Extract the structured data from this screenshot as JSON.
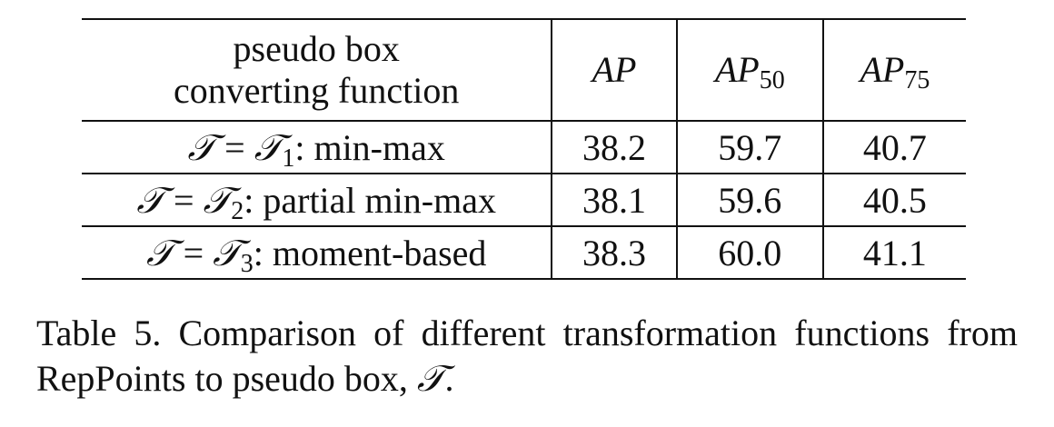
{
  "table": {
    "header": {
      "col1_line1": "pseudo box",
      "col1_line2": "converting function",
      "metrics": [
        {
          "base": "AP",
          "sub": ""
        },
        {
          "base": "AP",
          "sub": "50"
        },
        {
          "base": "AP",
          "sub": "75"
        }
      ]
    },
    "rows": [
      {
        "lhs": "𝒯",
        "eq": "=",
        "rhs_base": "𝒯",
        "rhs_sub": "1",
        "label": ": min-max",
        "ap": "38.2",
        "ap50": "59.7",
        "ap75": "40.7"
      },
      {
        "lhs": "𝒯",
        "eq": "=",
        "rhs_base": "𝒯",
        "rhs_sub": "2",
        "label": ": partial min-max",
        "ap": "38.1",
        "ap50": "59.6",
        "ap75": "40.5"
      },
      {
        "lhs": "𝒯",
        "eq": "=",
        "rhs_base": "𝒯",
        "rhs_sub": "3",
        "label": ": moment-based",
        "ap": "38.3",
        "ap50": "60.0",
        "ap75": "41.1"
      }
    ]
  },
  "caption": {
    "text": "Table 5. Comparison of different transformation functions from RepPoints to pseudo box, ",
    "symbol": "𝒯",
    "end": "."
  }
}
